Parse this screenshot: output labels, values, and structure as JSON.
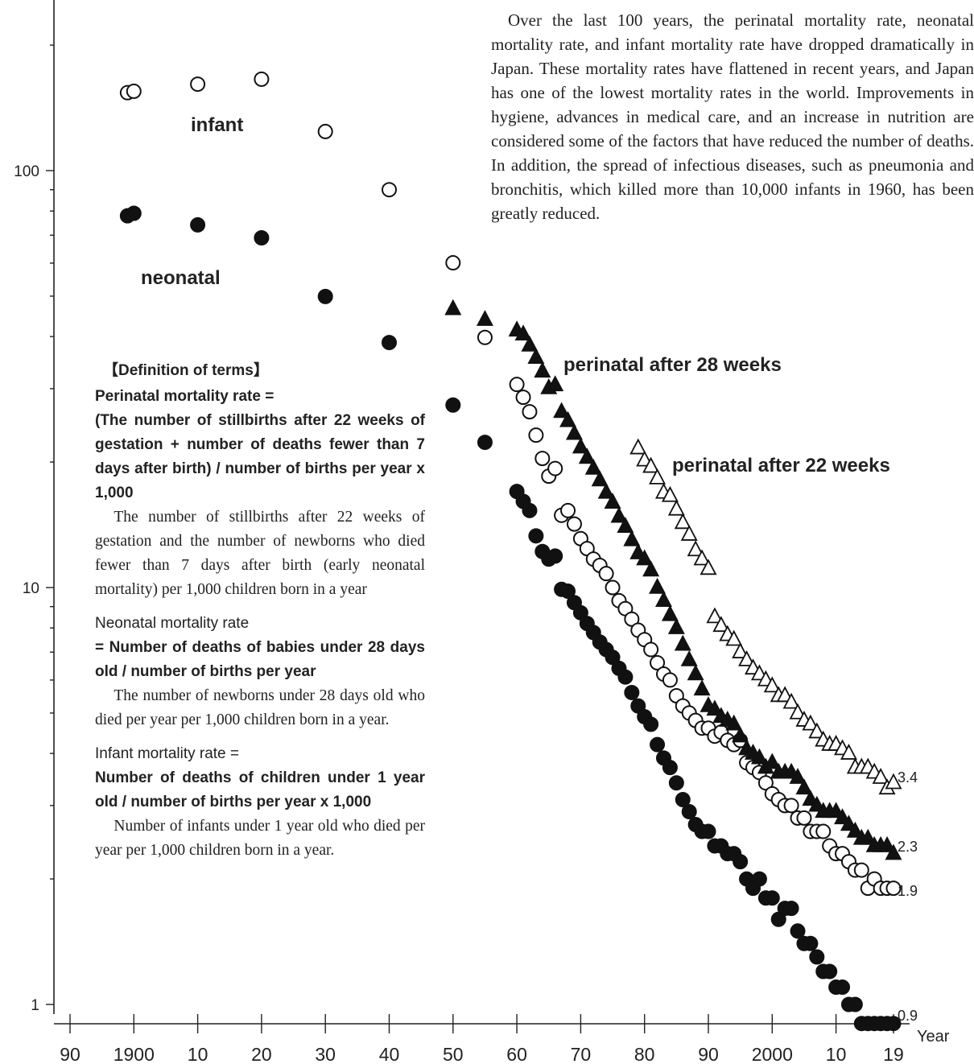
{
  "intro_text": "Over the last 100 years, the perinatal mortality rate, neonatal mortality rate, and infant mortality rate have dropped dramatically in Japan. These mortality rates have flattened in recent years, and Japan has one of the lowest mortality rates in the world. Improvements in hygiene, advances in medical care, and an increase in nutrition are considered some of the factors that have reduced the number of deaths. In addition, the spread of infectious diseases, such as pneumonia and bronchitis, which killed more than 10,000 infants in 1960, has been greatly reduced.",
  "definitions": {
    "title": "【Definition of terms】",
    "perinatal": {
      "heading": "Perinatal mortality rate =",
      "formula": "(The number of stillbirths after 22 weeks of gestation + number of deaths fewer than 7 days after birth) / number of births per year x 1,000",
      "body": "The number of stillbirths after 22 weeks of gestation and the number of newborns who died fewer than 7 days after birth (early neonatal mortality) per 1,000 children born in a year"
    },
    "neonatal": {
      "heading": "Neonatal mortality rate",
      "formula": "= Number of deaths of babies under 28 days old / number of births per year",
      "body": "The number of newborns under 28 days old who died per year per 1,000 children born in a year."
    },
    "infant": {
      "heading": "Infant mortality rate =",
      "formula": "Number of deaths of children under 1 year old / number of births per year x 1,000",
      "body": "Number of infants under 1 year old who died per year per 1,000 children born in a year."
    }
  },
  "chart_data": {
    "type": "scatter",
    "y_scale": "log",
    "ylim": [
      1,
      250
    ],
    "xlim": [
      1890,
      2019
    ],
    "xlabel": "Year",
    "ylabel": "",
    "x_ticks": [
      1890,
      1900,
      1910,
      1920,
      1930,
      1940,
      1950,
      1960,
      1970,
      1980,
      1990,
      2000,
      2010,
      2019
    ],
    "x_tick_labels": [
      "90",
      "1900",
      "10",
      "20",
      "30",
      "40",
      "50",
      "60",
      "70",
      "80",
      "90",
      "2000",
      "10",
      "19"
    ],
    "y_ticks": [
      1,
      10,
      100
    ],
    "y_tick_labels": [
      "1",
      "10",
      "100"
    ],
    "grid": false,
    "series": [
      {
        "name": "infant",
        "marker": "open-circle",
        "label": "infant",
        "end_label": "1.9",
        "x": [
          1899,
          1900,
          1910,
          1920,
          1930,
          1940,
          1950,
          1955,
          1960,
          1961,
          1962,
          1963,
          1964,
          1965,
          1966,
          1967,
          1968,
          1969,
          1970,
          1971,
          1972,
          1973,
          1974,
          1975,
          1976,
          1977,
          1978,
          1979,
          1980,
          1981,
          1982,
          1983,
          1984,
          1985,
          1986,
          1987,
          1988,
          1989,
          1990,
          1991,
          1992,
          1993,
          1994,
          1995,
          1996,
          1997,
          1998,
          1999,
          2000,
          2001,
          2002,
          2003,
          2004,
          2005,
          2006,
          2007,
          2008,
          2009,
          2010,
          2011,
          2012,
          2013,
          2014,
          2015,
          2016,
          2017,
          2018,
          2019
        ],
        "y": [
          153.8,
          155.0,
          161.2,
          165.7,
          124.1,
          90.0,
          60.1,
          39.8,
          30.7,
          28.6,
          26.4,
          23.2,
          20.4,
          18.5,
          19.3,
          14.9,
          15.3,
          14.2,
          13.1,
          12.4,
          11.7,
          11.3,
          10.8,
          10.0,
          9.3,
          8.9,
          8.4,
          7.9,
          7.5,
          7.1,
          6.6,
          6.2,
          6.0,
          5.5,
          5.2,
          5.0,
          4.8,
          4.6,
          4.6,
          4.4,
          4.5,
          4.3,
          4.2,
          4.3,
          3.8,
          3.7,
          3.6,
          3.4,
          3.2,
          3.1,
          3.0,
          3.0,
          2.8,
          2.8,
          2.6,
          2.6,
          2.6,
          2.4,
          2.3,
          2.3,
          2.2,
          2.1,
          2.1,
          1.9,
          2.0,
          1.9,
          1.9,
          1.9
        ]
      },
      {
        "name": "neonatal",
        "marker": "filled-circle",
        "label": "neonatal",
        "end_label": "0.9",
        "x": [
          1899,
          1900,
          1910,
          1920,
          1930,
          1940,
          1950,
          1955,
          1960,
          1961,
          1962,
          1963,
          1964,
          1965,
          1966,
          1967,
          1968,
          1969,
          1970,
          1971,
          1972,
          1973,
          1974,
          1975,
          1976,
          1977,
          1978,
          1979,
          1980,
          1981,
          1982,
          1983,
          1984,
          1985,
          1986,
          1987,
          1988,
          1989,
          1990,
          1991,
          1992,
          1993,
          1994,
          1995,
          1996,
          1997,
          1998,
          1999,
          2000,
          2001,
          2002,
          2003,
          2004,
          2005,
          2006,
          2007,
          2008,
          2009,
          2010,
          2011,
          2012,
          2013,
          2014,
          2015,
          2016,
          2017,
          2018,
          2019
        ],
        "y": [
          77.9,
          79.0,
          74.1,
          69.0,
          49.9,
          38.7,
          27.4,
          22.3,
          17.0,
          16.1,
          15.3,
          13.3,
          12.2,
          11.7,
          11.9,
          9.9,
          9.8,
          9.2,
          8.7,
          8.2,
          7.8,
          7.4,
          7.1,
          6.8,
          6.4,
          6.1,
          5.6,
          5.2,
          4.9,
          4.7,
          4.2,
          3.9,
          3.7,
          3.4,
          3.1,
          2.9,
          2.7,
          2.6,
          2.6,
          2.4,
          2.4,
          2.3,
          2.3,
          2.2,
          2.0,
          1.9,
          2.0,
          1.8,
          1.8,
          1.6,
          1.7,
          1.7,
          1.5,
          1.4,
          1.4,
          1.3,
          1.2,
          1.2,
          1.1,
          1.1,
          1.0,
          1.0,
          0.9,
          0.9,
          0.9,
          0.9,
          0.9,
          0.9
        ]
      },
      {
        "name": "perinatal after 28 weeks",
        "marker": "filled-triangle",
        "label": "perinatal after 28 weeks",
        "end_label": "2.3",
        "x": [
          1950,
          1955,
          1960,
          1961,
          1962,
          1963,
          1964,
          1965,
          1966,
          1967,
          1968,
          1969,
          1970,
          1971,
          1972,
          1973,
          1974,
          1975,
          1976,
          1977,
          1978,
          1979,
          1980,
          1981,
          1982,
          1983,
          1984,
          1985,
          1986,
          1987,
          1988,
          1989,
          1990,
          1991,
          1992,
          1993,
          1994,
          1995,
          1996,
          1997,
          1998,
          1999,
          2000,
          2001,
          2002,
          2003,
          2004,
          2005,
          2006,
          2007,
          2008,
          2009,
          2010,
          2011,
          2012,
          2013,
          2014,
          2015,
          2016,
          2017,
          2018,
          2019
        ],
        "y": [
          46.6,
          43.9,
          41.4,
          40.5,
          38.1,
          35.6,
          33.0,
          30.1,
          30.6,
          26.4,
          25.1,
          23.4,
          21.7,
          20.5,
          19.3,
          18.1,
          16.9,
          16.0,
          14.8,
          14.0,
          13.0,
          12.1,
          11.7,
          11.0,
          10.0,
          9.3,
          8.6,
          8.0,
          7.3,
          6.7,
          6.2,
          5.7,
          5.2,
          5.1,
          4.9,
          4.8,
          4.7,
          4.4,
          4.1,
          4.0,
          3.9,
          3.7,
          3.8,
          3.6,
          3.6,
          3.6,
          3.5,
          3.3,
          3.1,
          3.0,
          2.9,
          2.9,
          2.9,
          2.8,
          2.7,
          2.6,
          2.5,
          2.5,
          2.4,
          2.4,
          2.4,
          2.3
        ]
      },
      {
        "name": "perinatal after 22 weeks",
        "marker": "open-triangle",
        "label": "perinatal after 22 weeks",
        "end_label": "3.4",
        "x": [
          1979,
          1980,
          1981,
          1982,
          1983,
          1984,
          1985,
          1986,
          1987,
          1988,
          1989,
          1990,
          1991,
          1992,
          1993,
          1994,
          1995,
          1996,
          1997,
          1998,
          1999,
          2000,
          2001,
          2002,
          2003,
          2004,
          2005,
          2006,
          2007,
          2008,
          2009,
          2010,
          2011,
          2012,
          2013,
          2014,
          2015,
          2016,
          2017,
          2018,
          2019
        ],
        "y": [
          21.6,
          20.2,
          19.5,
          18.3,
          16.9,
          16.6,
          15.4,
          14.3,
          13.4,
          12.3,
          11.7,
          11.1,
          8.5,
          8.1,
          7.7,
          7.5,
          7.0,
          6.7,
          6.4,
          6.2,
          6.0,
          5.8,
          5.5,
          5.5,
          5.3,
          5.0,
          4.8,
          4.7,
          4.5,
          4.3,
          4.2,
          4.2,
          4.1,
          4.0,
          3.7,
          3.7,
          3.7,
          3.6,
          3.5,
          3.3,
          3.4
        ]
      }
    ]
  }
}
